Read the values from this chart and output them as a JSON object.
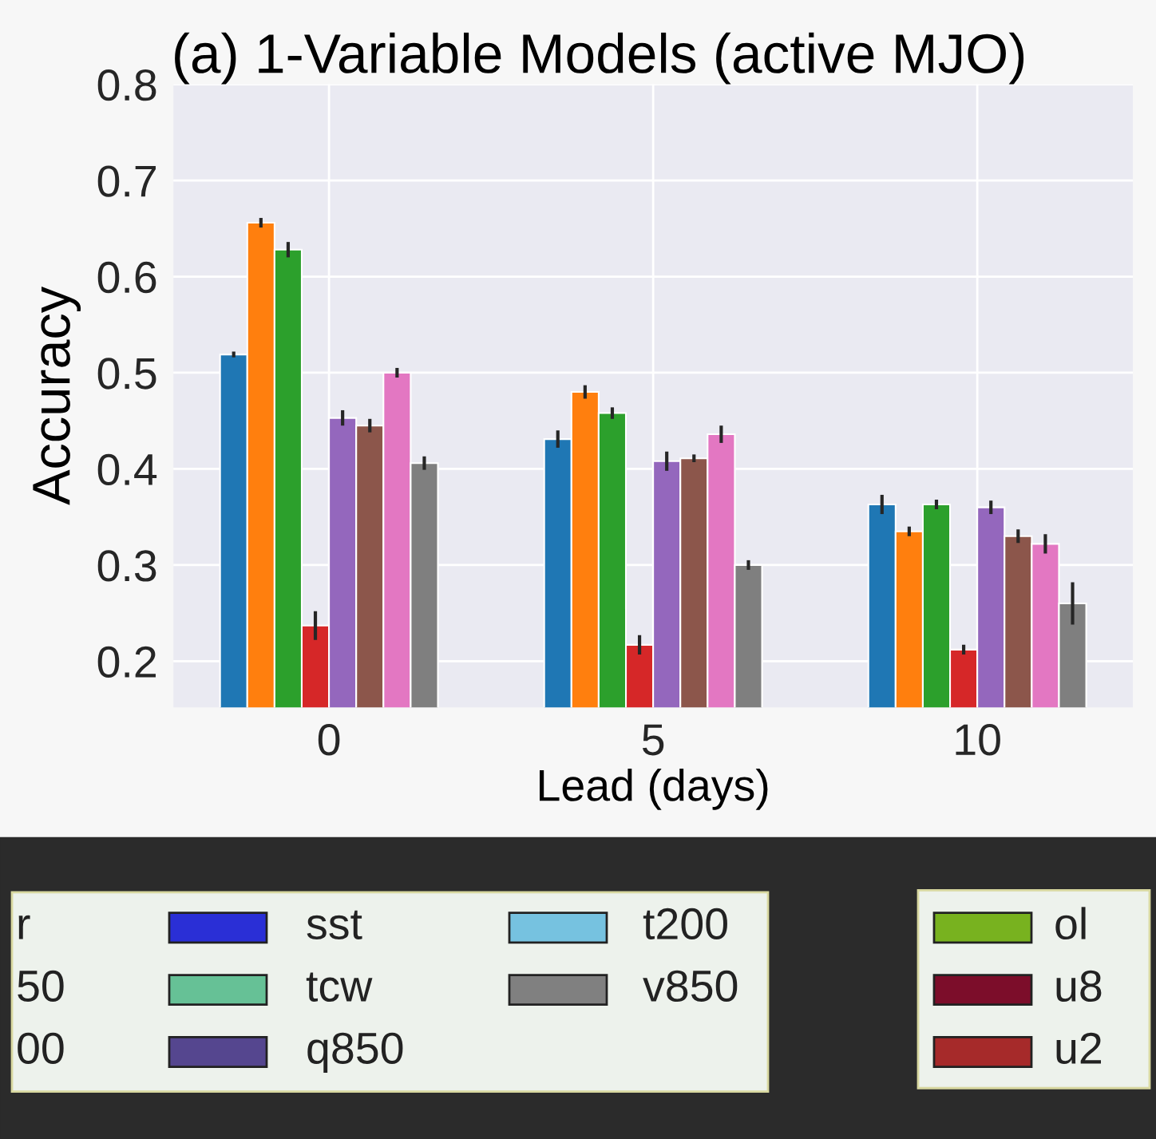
{
  "chart_data": [
    {
      "type": "bar",
      "title": "(a) 1-Variable Models (active MJO)",
      "xlabel": "Lead (days)",
      "ylabel": "Accuracy",
      "categories": [
        "0",
        "5",
        "10"
      ],
      "ylim": [
        0.152,
        0.8
      ],
      "yticks": [
        0.2,
        0.3,
        0.4,
        0.5,
        0.6,
        0.7,
        0.8
      ],
      "grid": true,
      "legend": false,
      "series": [
        {
          "color": "#1f77b4",
          "values": [
            0.519,
            0.431,
            0.363
          ],
          "errors": [
            0.003,
            0.009,
            0.01
          ]
        },
        {
          "color": "#ff7f0e",
          "values": [
            0.656,
            0.48,
            0.335
          ],
          "errors": [
            0.005,
            0.007,
            0.005
          ]
        },
        {
          "color": "#2ca02c",
          "values": [
            0.628,
            0.458,
            0.363
          ],
          "errors": [
            0.008,
            0.006,
            0.005
          ]
        },
        {
          "color": "#d62728",
          "values": [
            0.237,
            0.217,
            0.212
          ],
          "errors": [
            0.015,
            0.01,
            0.005
          ]
        },
        {
          "color": "#9467bd",
          "values": [
            0.453,
            0.408,
            0.36
          ],
          "errors": [
            0.008,
            0.01,
            0.007
          ]
        },
        {
          "color": "#8c564b",
          "values": [
            0.445,
            0.411,
            0.33
          ],
          "errors": [
            0.007,
            0.004,
            0.007
          ]
        },
        {
          "color": "#e377c2",
          "values": [
            0.5,
            0.436,
            0.322
          ],
          "errors": [
            0.005,
            0.009,
            0.01
          ]
        },
        {
          "color": "#7f7f7f",
          "values": [
            0.406,
            0.3,
            0.26
          ],
          "errors": [
            0.007,
            0.005,
            0.022
          ]
        }
      ]
    },
    {
      "type": "other",
      "series": [
        {
          "name": "r",
          "color": null
        },
        {
          "name": "50",
          "color": null
        },
        {
          "name": "00",
          "color": null
        },
        {
          "name": "sst",
          "color": "#2a2fd6"
        },
        {
          "name": "tcw",
          "color": "#66c196"
        },
        {
          "name": "q850",
          "color": "#55468f"
        },
        {
          "name": "t200",
          "color": "#76c2e0"
        },
        {
          "name": "v850",
          "color": "#808080"
        },
        {
          "name": "ol",
          "color": "#78b21f"
        },
        {
          "name": "u8",
          "color": "#7c0d2a"
        },
        {
          "name": "u2",
          "color": "#a62a2a"
        }
      ]
    }
  ]
}
